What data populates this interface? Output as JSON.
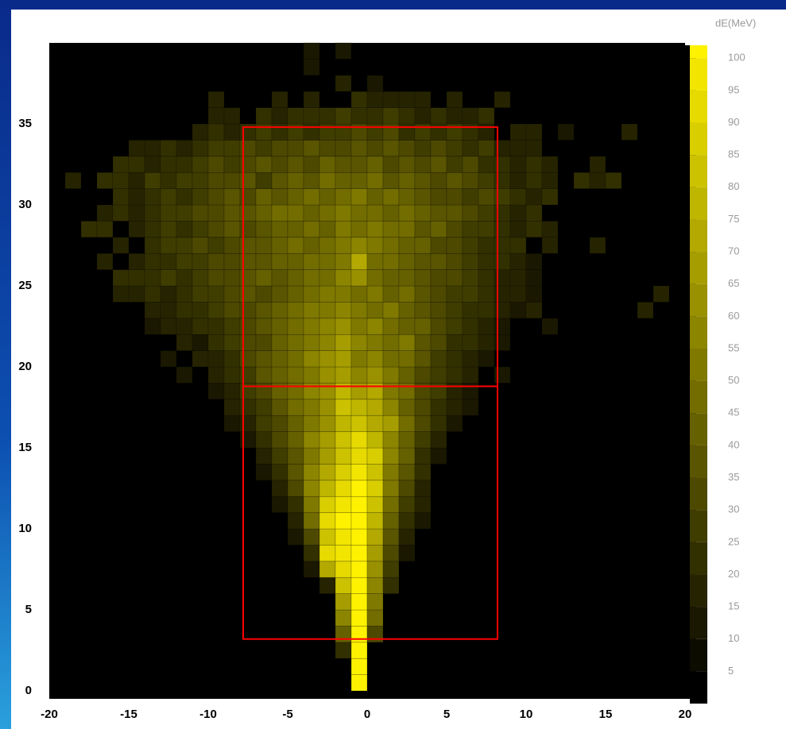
{
  "chart_data": {
    "type": "heatmap",
    "colorbar_label": "dE(MeV)",
    "xlim": [
      -20,
      20
    ],
    "ylim": [
      0,
      40
    ],
    "zlim": [
      0,
      102
    ],
    "xticks": [
      -20,
      -15,
      -10,
      -5,
      0,
      5,
      10,
      15,
      20
    ],
    "yticks": [
      0,
      5,
      10,
      15,
      20,
      25,
      30,
      35
    ],
    "zticks": [
      5,
      10,
      15,
      20,
      25,
      30,
      35,
      40,
      45,
      50,
      55,
      60,
      65,
      70,
      75,
      80,
      85,
      90,
      95,
      100
    ],
    "colormap": [
      "#000000",
      "#fff200"
    ],
    "region_color": "#ff0000",
    "regions": [
      {
        "x": [
          -7.8,
          8.2
        ],
        "y": [
          3.2,
          18.8
        ]
      },
      {
        "x": [
          -7.8,
          8.2
        ],
        "y": [
          18.8,
          34.8
        ]
      }
    ],
    "values": [
      [
        0,
        0,
        0,
        0,
        0,
        0,
        0,
        0,
        0,
        0,
        0,
        0,
        0,
        0,
        0,
        0,
        0,
        0,
        0,
        100,
        0,
        0,
        0,
        0,
        0,
        0,
        0,
        0,
        0,
        0,
        0,
        0,
        0,
        0,
        0,
        0,
        0,
        0,
        0,
        0
      ],
      [
        0,
        0,
        0,
        0,
        0,
        0,
        0,
        0,
        0,
        0,
        0,
        0,
        0,
        0,
        0,
        0,
        0,
        0,
        0,
        100,
        0,
        0,
        0,
        0,
        0,
        0,
        0,
        0,
        0,
        0,
        0,
        0,
        0,
        0,
        0,
        0,
        0,
        0,
        0,
        0
      ],
      [
        0,
        0,
        0,
        0,
        0,
        0,
        0,
        0,
        0,
        0,
        0,
        0,
        0,
        0,
        0,
        0,
        0,
        0,
        20,
        100,
        0,
        0,
        0,
        0,
        0,
        0,
        0,
        0,
        0,
        0,
        0,
        0,
        0,
        0,
        0,
        0,
        0,
        0,
        0,
        0
      ],
      [
        0,
        0,
        0,
        0,
        0,
        0,
        0,
        0,
        0,
        0,
        0,
        0,
        0,
        0,
        0,
        0,
        0,
        0,
        40,
        100,
        30,
        0,
        0,
        0,
        0,
        0,
        0,
        0,
        0,
        0,
        0,
        0,
        0,
        0,
        0,
        0,
        0,
        0,
        0,
        0
      ],
      [
        0,
        0,
        0,
        0,
        0,
        0,
        0,
        0,
        0,
        0,
        0,
        0,
        0,
        0,
        0,
        0,
        0,
        0,
        55,
        100,
        45,
        0,
        0,
        0,
        0,
        0,
        0,
        0,
        0,
        0,
        0,
        0,
        0,
        0,
        0,
        0,
        0,
        0,
        0,
        0
      ],
      [
        0,
        0,
        0,
        0,
        0,
        0,
        0,
        0,
        0,
        0,
        0,
        0,
        0,
        0,
        0,
        0,
        0,
        0,
        65,
        100,
        50,
        0,
        0,
        0,
        0,
        0,
        0,
        0,
        0,
        0,
        0,
        0,
        0,
        0,
        0,
        0,
        0,
        0,
        0,
        0
      ],
      [
        0,
        0,
        0,
        0,
        0,
        0,
        0,
        0,
        0,
        0,
        0,
        0,
        0,
        0,
        0,
        0,
        0,
        15,
        80,
        100,
        55,
        20,
        0,
        0,
        0,
        0,
        0,
        0,
        0,
        0,
        0,
        0,
        0,
        0,
        0,
        0,
        0,
        0,
        0,
        0
      ],
      [
        0,
        0,
        0,
        0,
        0,
        0,
        0,
        0,
        0,
        0,
        0,
        0,
        0,
        0,
        0,
        0,
        10,
        70,
        90,
        100,
        60,
        25,
        0,
        0,
        0,
        0,
        0,
        0,
        0,
        0,
        0,
        0,
        0,
        0,
        0,
        0,
        0,
        0,
        0,
        0
      ],
      [
        0,
        0,
        0,
        0,
        0,
        0,
        0,
        0,
        0,
        0,
        0,
        0,
        0,
        0,
        0,
        0,
        20,
        90,
        95,
        100,
        65,
        30,
        10,
        0,
        0,
        0,
        0,
        0,
        0,
        0,
        0,
        0,
        0,
        0,
        0,
        0,
        0,
        0,
        0,
        0
      ],
      [
        0,
        0,
        0,
        0,
        0,
        0,
        0,
        0,
        0,
        0,
        0,
        0,
        0,
        0,
        0,
        10,
        30,
        80,
        95,
        100,
        70,
        35,
        15,
        0,
        0,
        0,
        0,
        0,
        0,
        0,
        0,
        0,
        0,
        0,
        0,
        0,
        0,
        0,
        0,
        0
      ],
      [
        0,
        0,
        0,
        0,
        0,
        0,
        0,
        0,
        0,
        0,
        0,
        0,
        0,
        0,
        0,
        15,
        45,
        90,
        100,
        100,
        75,
        40,
        20,
        10,
        0,
        0,
        0,
        0,
        0,
        0,
        0,
        0,
        0,
        0,
        0,
        0,
        0,
        0,
        0,
        0
      ],
      [
        0,
        0,
        0,
        0,
        0,
        0,
        0,
        0,
        0,
        0,
        0,
        0,
        0,
        0,
        10,
        20,
        50,
        85,
        95,
        100,
        80,
        45,
        25,
        15,
        0,
        0,
        0,
        0,
        0,
        0,
        0,
        0,
        0,
        0,
        0,
        0,
        0,
        0,
        0,
        0
      ],
      [
        0,
        0,
        0,
        0,
        0,
        0,
        0,
        0,
        0,
        0,
        0,
        0,
        0,
        0,
        15,
        30,
        55,
        75,
        90,
        100,
        85,
        50,
        30,
        15,
        0,
        0,
        0,
        0,
        0,
        0,
        0,
        0,
        0,
        0,
        0,
        0,
        0,
        0,
        0,
        0
      ],
      [
        0,
        0,
        0,
        0,
        0,
        0,
        0,
        0,
        0,
        0,
        0,
        0,
        0,
        10,
        20,
        35,
        55,
        70,
        85,
        95,
        80,
        50,
        35,
        20,
        0,
        0,
        0,
        0,
        0,
        0,
        0,
        0,
        0,
        0,
        0,
        0,
        0,
        0,
        0,
        0
      ],
      [
        0,
        0,
        0,
        0,
        0,
        0,
        0,
        0,
        0,
        0,
        0,
        0,
        0,
        15,
        25,
        35,
        50,
        65,
        80,
        90,
        85,
        55,
        40,
        20,
        10,
        0,
        0,
        0,
        0,
        0,
        0,
        0,
        0,
        0,
        0,
        0,
        0,
        0,
        0,
        0
      ],
      [
        0,
        0,
        0,
        0,
        0,
        0,
        0,
        0,
        0,
        0,
        0,
        0,
        10,
        20,
        30,
        40,
        55,
        65,
        80,
        90,
        75,
        55,
        40,
        25,
        15,
        0,
        0,
        0,
        0,
        0,
        0,
        0,
        0,
        0,
        0,
        0,
        0,
        0,
        0,
        0
      ],
      [
        0,
        0,
        0,
        0,
        0,
        0,
        0,
        0,
        0,
        0,
        0,
        10,
        15,
        25,
        30,
        40,
        50,
        60,
        75,
        80,
        70,
        65,
        45,
        30,
        20,
        10,
        0,
        0,
        0,
        0,
        0,
        0,
        0,
        0,
        0,
        0,
        0,
        0,
        0,
        0
      ],
      [
        0,
        0,
        0,
        0,
        0,
        0,
        0,
        0,
        0,
        0,
        0,
        15,
        20,
        25,
        35,
        45,
        50,
        60,
        80,
        75,
        70,
        55,
        40,
        30,
        20,
        15,
        10,
        0,
        0,
        0,
        0,
        0,
        0,
        0,
        0,
        0,
        0,
        0,
        0,
        0
      ],
      [
        0,
        0,
        0,
        0,
        0,
        0,
        0,
        0,
        0,
        0,
        10,
        15,
        25,
        30,
        40,
        45,
        55,
        60,
        75,
        65,
        70,
        50,
        45,
        30,
        25,
        15,
        10,
        0,
        0,
        0,
        0,
        0,
        0,
        0,
        0,
        0,
        0,
        0,
        0,
        0
      ],
      [
        0,
        0,
        0,
        0,
        0,
        0,
        0,
        0,
        10,
        0,
        15,
        20,
        25,
        35,
        40,
        45,
        50,
        60,
        65,
        55,
        60,
        50,
        40,
        30,
        25,
        20,
        15,
        0,
        10,
        0,
        0,
        0,
        0,
        0,
        0,
        0,
        0,
        0,
        0,
        0
      ],
      [
        0,
        0,
        0,
        0,
        0,
        0,
        0,
        10,
        0,
        15,
        15,
        20,
        30,
        35,
        40,
        45,
        55,
        60,
        65,
        50,
        55,
        45,
        45,
        35,
        25,
        20,
        15,
        10,
        0,
        0,
        0,
        0,
        0,
        0,
        0,
        0,
        0,
        0,
        0,
        0
      ],
      [
        0,
        0,
        0,
        0,
        0,
        0,
        0,
        0,
        15,
        10,
        20,
        25,
        30,
        30,
        40,
        45,
        50,
        55,
        65,
        55,
        50,
        45,
        50,
        35,
        30,
        20,
        20,
        15,
        10,
        0,
        0,
        0,
        0,
        0,
        0,
        0,
        0,
        0,
        0,
        0
      ],
      [
        0,
        0,
        0,
        0,
        0,
        0,
        10,
        15,
        15,
        20,
        20,
        25,
        30,
        35,
        40,
        45,
        50,
        55,
        60,
        50,
        55,
        45,
        40,
        40,
        30,
        25,
        20,
        15,
        10,
        0,
        0,
        10,
        0,
        0,
        0,
        0,
        0,
        0,
        0,
        0
      ],
      [
        0,
        0,
        0,
        0,
        0,
        0,
        15,
        15,
        20,
        20,
        25,
        30,
        30,
        35,
        40,
        45,
        50,
        50,
        55,
        50,
        45,
        50,
        40,
        35,
        30,
        25,
        20,
        20,
        15,
        10,
        15,
        0,
        0,
        0,
        0,
        0,
        0,
        15,
        0,
        0
      ],
      [
        0,
        0,
        0,
        0,
        15,
        15,
        20,
        15,
        20,
        25,
        25,
        30,
        35,
        30,
        35,
        40,
        45,
        50,
        50,
        45,
        50,
        40,
        45,
        35,
        30,
        25,
        25,
        20,
        15,
        15,
        10,
        0,
        0,
        0,
        0,
        0,
        0,
        0,
        15,
        0
      ],
      [
        0,
        0,
        0,
        0,
        20,
        20,
        20,
        25,
        20,
        25,
        30,
        30,
        35,
        40,
        35,
        40,
        45,
        45,
        55,
        60,
        45,
        40,
        40,
        35,
        30,
        30,
        25,
        20,
        15,
        15,
        10,
        0,
        0,
        0,
        0,
        0,
        0,
        0,
        0,
        0
      ],
      [
        0,
        0,
        0,
        15,
        0,
        15,
        20,
        20,
        25,
        25,
        30,
        30,
        35,
        35,
        40,
        40,
        45,
        45,
        50,
        70,
        45,
        45,
        40,
        35,
        35,
        30,
        25,
        20,
        20,
        15,
        10,
        0,
        0,
        0,
        0,
        0,
        0,
        0,
        0,
        0
      ],
      [
        0,
        0,
        0,
        0,
        15,
        0,
        20,
        25,
        25,
        30,
        25,
        30,
        35,
        35,
        40,
        45,
        40,
        45,
        50,
        55,
        50,
        45,
        40,
        40,
        30,
        30,
        25,
        20,
        20,
        20,
        0,
        15,
        0,
        0,
        15,
        0,
        0,
        0,
        0,
        0
      ],
      [
        0,
        0,
        20,
        20,
        0,
        15,
        20,
        25,
        20,
        25,
        30,
        35,
        30,
        35,
        40,
        40,
        45,
        40,
        50,
        45,
        50,
        45,
        45,
        35,
        40,
        30,
        25,
        25,
        20,
        15,
        20,
        15,
        0,
        0,
        0,
        0,
        0,
        0,
        0,
        0
      ],
      [
        0,
        0,
        0,
        15,
        20,
        15,
        20,
        25,
        25,
        30,
        30,
        35,
        35,
        40,
        45,
        45,
        40,
        45,
        50,
        45,
        45,
        40,
        45,
        40,
        35,
        35,
        30,
        25,
        20,
        15,
        20,
        0,
        0,
        0,
        0,
        0,
        0,
        0,
        0,
        0
      ],
      [
        0,
        0,
        0,
        0,
        20,
        15,
        20,
        25,
        20,
        25,
        30,
        35,
        30,
        40,
        35,
        40,
        45,
        40,
        45,
        50,
        40,
        45,
        40,
        35,
        30,
        30,
        25,
        30,
        25,
        20,
        15,
        20,
        0,
        0,
        0,
        0,
        0,
        0,
        0,
        0
      ],
      [
        0,
        15,
        0,
        20,
        20,
        15,
        25,
        20,
        25,
        25,
        30,
        30,
        35,
        25,
        35,
        40,
        35,
        45,
        40,
        40,
        45,
        35,
        40,
        35,
        30,
        35,
        30,
        25,
        20,
        15,
        20,
        15,
        0,
        20,
        15,
        20,
        0,
        0,
        0,
        0
      ],
      [
        0,
        0,
        0,
        0,
        20,
        20,
        15,
        20,
        20,
        25,
        30,
        25,
        30,
        35,
        30,
        35,
        30,
        40,
        35,
        35,
        40,
        30,
        35,
        30,
        35,
        25,
        30,
        20,
        20,
        15,
        20,
        15,
        0,
        0,
        15,
        0,
        0,
        0,
        0,
        0
      ],
      [
        0,
        0,
        0,
        0,
        0,
        15,
        15,
        20,
        15,
        20,
        25,
        25,
        30,
        25,
        30,
        30,
        35,
        30,
        30,
        35,
        30,
        35,
        30,
        25,
        30,
        25,
        20,
        25,
        15,
        15,
        15,
        0,
        0,
        0,
        0,
        0,
        0,
        0,
        0,
        0
      ],
      [
        0,
        0,
        0,
        0,
        0,
        0,
        0,
        0,
        0,
        15,
        20,
        15,
        20,
        25,
        20,
        25,
        20,
        25,
        25,
        30,
        25,
        30,
        20,
        25,
        20,
        25,
        20,
        15,
        0,
        15,
        15,
        0,
        10,
        0,
        0,
        0,
        15,
        0,
        0,
        0
      ],
      [
        0,
        0,
        0,
        0,
        0,
        0,
        0,
        0,
        0,
        0,
        15,
        15,
        0,
        20,
        15,
        20,
        20,
        20,
        25,
        20,
        20,
        25,
        20,
        15,
        20,
        15,
        15,
        20,
        0,
        0,
        0,
        0,
        0,
        0,
        0,
        0,
        0,
        0,
        0,
        0
      ],
      [
        0,
        0,
        0,
        0,
        0,
        0,
        0,
        0,
        0,
        0,
        15,
        0,
        0,
        0,
        15,
        0,
        15,
        0,
        0,
        20,
        15,
        15,
        15,
        15,
        0,
        15,
        0,
        0,
        15,
        0,
        0,
        0,
        0,
        0,
        0,
        0,
        0,
        0,
        0,
        0
      ],
      [
        0,
        0,
        0,
        0,
        0,
        0,
        0,
        0,
        0,
        0,
        0,
        0,
        0,
        0,
        0,
        0,
        0,
        0,
        15,
        0,
        10,
        0,
        0,
        0,
        0,
        0,
        0,
        0,
        0,
        0,
        0,
        0,
        0,
        0,
        0,
        0,
        0,
        0,
        0,
        0
      ],
      [
        0,
        0,
        0,
        0,
        0,
        0,
        0,
        0,
        0,
        0,
        0,
        0,
        0,
        0,
        0,
        0,
        10,
        0,
        0,
        0,
        0,
        0,
        0,
        0,
        0,
        0,
        0,
        0,
        0,
        0,
        0,
        0,
        0,
        0,
        0,
        0,
        0,
        0,
        0,
        0
      ],
      [
        0,
        0,
        0,
        0,
        0,
        0,
        0,
        0,
        0,
        0,
        0,
        0,
        0,
        0,
        0,
        0,
        10,
        0,
        10,
        0,
        0,
        0,
        0,
        0,
        0,
        0,
        0,
        0,
        0,
        0,
        0,
        0,
        0,
        0,
        0,
        0,
        0,
        0,
        0,
        0
      ]
    ]
  }
}
